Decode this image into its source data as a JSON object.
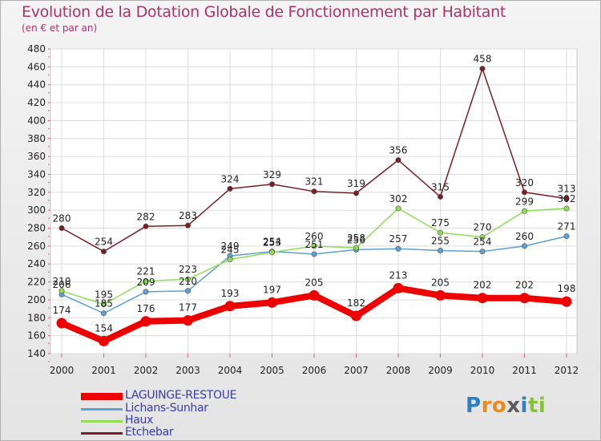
{
  "header": {
    "title": "Evolution de la Dotation Globale de Fonctionnement par Habitant",
    "subtitle": "(en € et par an)"
  },
  "chart_data": {
    "type": "line",
    "title": "Evolution de la Dotation Globale de Fonctionnement par Habitant",
    "subtitle": "(en € et par an)",
    "xlabel": "",
    "ylabel": "",
    "x": [
      2000,
      2001,
      2002,
      2003,
      2004,
      2005,
      2006,
      2007,
      2008,
      2009,
      2010,
      2011,
      2012
    ],
    "ylim": [
      140,
      480
    ],
    "yticks": [
      140,
      160,
      180,
      200,
      220,
      240,
      260,
      280,
      300,
      320,
      340,
      360,
      380,
      400,
      420,
      440,
      460,
      480
    ],
    "legend_position": "bottom-left",
    "grid": true,
    "series": [
      {
        "name": "Etchebar",
        "color": "#7a1e26",
        "values": [
          280,
          254,
          282,
          283,
          324,
          329,
          321,
          319,
          356,
          315,
          458,
          320,
          313
        ]
      },
      {
        "name": "Lichans-Sunhar",
        "color": "#5f9fd2",
        "values": [
          206,
          185,
          209,
          210,
          249,
          254,
          251,
          256,
          257,
          255,
          254,
          260,
          271
        ]
      },
      {
        "name": "Haux",
        "color": "#8fdc55",
        "values": [
          210,
          195,
          221,
          223,
          245,
          253,
          260,
          258,
          302,
          275,
          270,
          299,
          302
        ]
      },
      {
        "name": "LAGUINGE-RESTOUE",
        "color": "#ee0000",
        "values": [
          174,
          154,
          176,
          177,
          193,
          197,
          205,
          182,
          213,
          205,
          202,
          202,
          198
        ]
      }
    ]
  },
  "legend": {
    "items": [
      {
        "name": "LAGUINGE-RESTOUE",
        "color": "#ee0000"
      },
      {
        "name": "Lichans-Sunhar",
        "color": "#5f9fd2"
      },
      {
        "name": "Haux",
        "color": "#8fdc55"
      },
      {
        "name": "Etchebar",
        "color": "#7a1e26"
      }
    ]
  },
  "logo": {
    "letters": [
      "P",
      "r",
      "o",
      "x",
      "i",
      "t",
      "i"
    ],
    "colors": [
      "#2e7fc2",
      "#ee8a1c",
      "#ee8a1c",
      "#5a5a5a",
      "#2e7fc2",
      "#88c23b",
      "#88c23b"
    ]
  }
}
